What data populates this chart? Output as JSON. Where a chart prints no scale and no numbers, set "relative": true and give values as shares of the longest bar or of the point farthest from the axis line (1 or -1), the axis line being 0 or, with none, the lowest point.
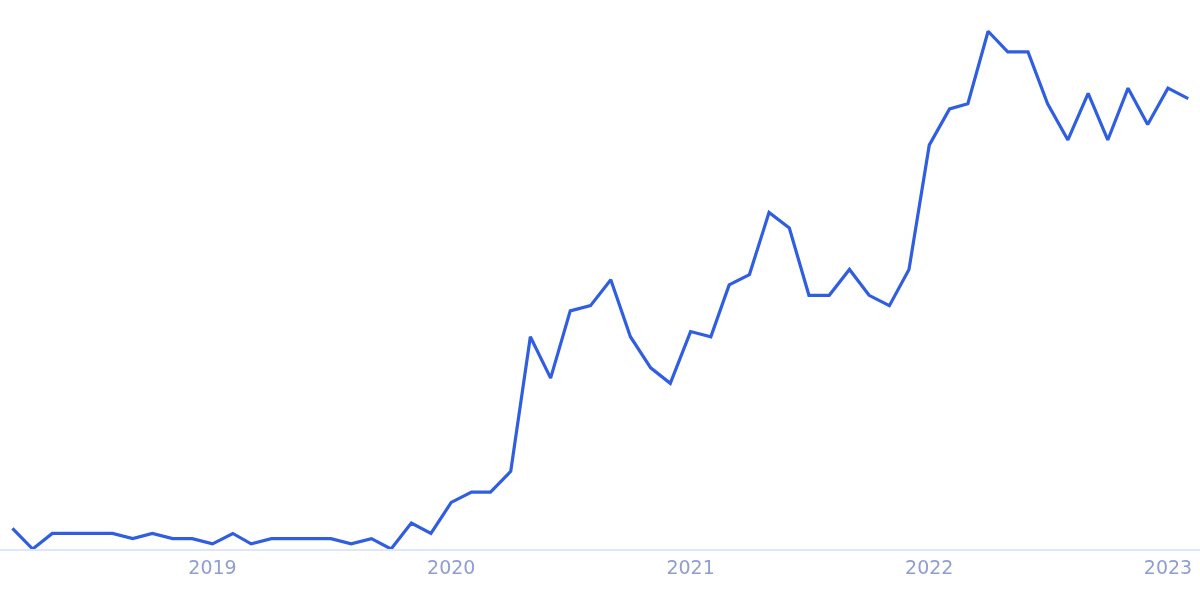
{
  "chart_data": {
    "type": "line",
    "relative": true,
    "x": [
      "2018-03",
      "2018-04",
      "2018-05",
      "2018-06",
      "2018-07",
      "2018-08",
      "2018-09",
      "2018-10",
      "2018-11",
      "2018-12",
      "2019-01",
      "2019-02",
      "2019-03",
      "2019-04",
      "2019-05",
      "2019-06",
      "2019-07",
      "2019-08",
      "2019-09",
      "2019-10",
      "2019-11",
      "2019-12",
      "2020-01",
      "2020-02",
      "2020-03",
      "2020-04",
      "2020-05",
      "2020-06",
      "2020-07",
      "2020-08",
      "2020-09",
      "2020-10",
      "2020-11",
      "2020-12",
      "2021-01",
      "2021-02",
      "2021-03",
      "2021-04",
      "2021-05",
      "2021-06",
      "2021-07",
      "2021-08",
      "2021-09",
      "2021-10",
      "2021-11",
      "2021-12",
      "2022-01",
      "2022-02",
      "2022-03",
      "2022-04",
      "2022-05",
      "2022-06",
      "2022-07",
      "2022-08",
      "2022-09",
      "2022-10",
      "2022-11",
      "2022-12",
      "2023-01",
      "2023-02"
    ],
    "series": [
      {
        "color": "#2f5fe0",
        "values": [
          0.04,
          0,
          0.03,
          0.03,
          0.03,
          0.03,
          0.02,
          0.03,
          0.02,
          0.02,
          0.01,
          0.03,
          0.01,
          0.02,
          0.02,
          0.02,
          0.02,
          0.01,
          0.02,
          0,
          0.05,
          0.03,
          0.09,
          0.11,
          0.11,
          0.15,
          0.41,
          0.33,
          0.46,
          0.47,
          0.52,
          0.41,
          0.35,
          0.32,
          0.42,
          0.41,
          0.51,
          0.53,
          0.65,
          0.62,
          0.49,
          0.49,
          0.54,
          0.49,
          0.47,
          0.54,
          0.78,
          0.85,
          0.86,
          1,
          0.96,
          0.96,
          0.86,
          0.79,
          0.88,
          0.79,
          0.89,
          0.82,
          0.89,
          0.87
        ]
      }
    ],
    "xlim": [
      "2018-02-10",
      "2023-02-19"
    ],
    "xticks": [
      {
        "value": "2019-01-01",
        "label": "2019"
      },
      {
        "value": "2020-01-01",
        "label": "2020"
      },
      {
        "value": "2021-01-01",
        "label": "2021"
      },
      {
        "value": "2022-01-01",
        "label": "2022"
      },
      {
        "value": "2023-01-01",
        "label": "2023"
      }
    ],
    "marker": "none",
    "line_style": "solid"
  }
}
